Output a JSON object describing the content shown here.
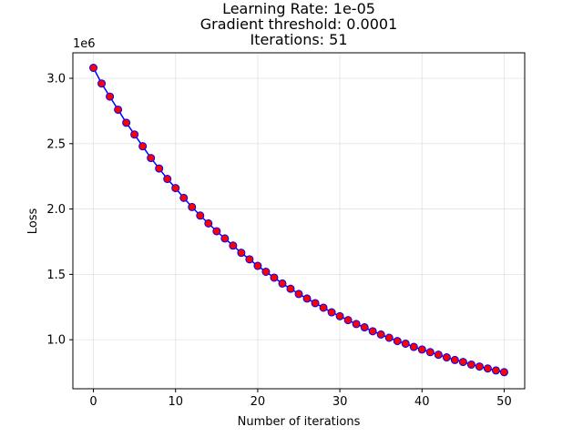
{
  "chart_data": {
    "type": "line",
    "title_lines": [
      "Learning Rate: 1e-05",
      "Gradient threshold: 0.0001",
      "Iterations: 51"
    ],
    "xlabel": "Number of iterations",
    "ylabel": "Loss",
    "y_offset_label": "1e6",
    "xlim": [
      -2.5,
      52.5
    ],
    "ylim": [
      0.625,
      3.195
    ],
    "x_ticks": [
      0,
      10,
      20,
      30,
      40,
      50
    ],
    "x_tick_labels": [
      "0",
      "10",
      "20",
      "30",
      "40",
      "50"
    ],
    "y_ticks": [
      1.0,
      1.5,
      2.0,
      2.5,
      3.0
    ],
    "y_tick_labels": [
      "1.0",
      "1.5",
      "2.0",
      "2.5",
      "3.0"
    ],
    "grid": true,
    "colors": {
      "line": "#0000ff",
      "marker_face": "#ff0000",
      "marker_edge": "#0000ff",
      "grid": "#b0b0b0"
    },
    "series": [
      {
        "x": [
          0,
          1,
          2,
          3,
          4,
          5,
          6,
          7,
          8,
          9,
          10,
          11,
          12,
          13,
          14,
          15,
          16,
          17,
          18,
          19,
          20,
          21,
          22,
          23,
          24,
          25,
          26,
          27,
          28,
          29,
          30,
          31,
          32,
          33,
          34,
          35,
          36,
          37,
          38,
          39,
          40,
          41,
          42,
          43,
          44,
          45,
          46,
          47,
          48,
          49,
          50
        ],
        "y": [
          3.08,
          2.96,
          2.86,
          2.76,
          2.66,
          2.57,
          2.48,
          2.39,
          2.31,
          2.23,
          2.16,
          2.085,
          2.015,
          1.95,
          1.89,
          1.83,
          1.775,
          1.72,
          1.665,
          1.615,
          1.565,
          1.52,
          1.475,
          1.43,
          1.39,
          1.35,
          1.315,
          1.28,
          1.245,
          1.21,
          1.18,
          1.15,
          1.12,
          1.095,
          1.065,
          1.04,
          1.015,
          0.99,
          0.97,
          0.945,
          0.925,
          0.905,
          0.885,
          0.865,
          0.845,
          0.83,
          0.81,
          0.795,
          0.78,
          0.765,
          0.752
        ]
      }
    ]
  }
}
